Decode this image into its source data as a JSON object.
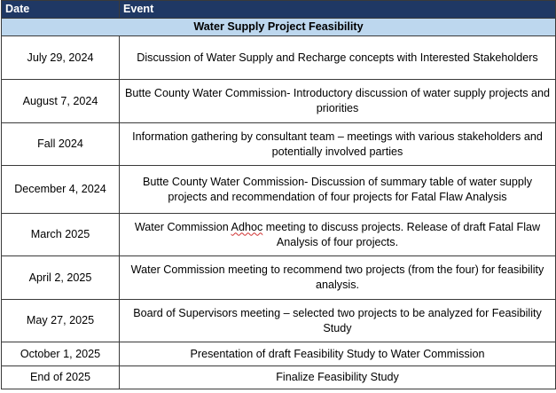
{
  "table": {
    "header": {
      "date": "Date",
      "event": "Event"
    },
    "section_title": "Water Supply Project Feasibility",
    "rows": [
      {
        "date": "July 29, 2024",
        "event": "Discussion of Water Supply and Recharge concepts with Interested Stakeholders"
      },
      {
        "date": "August 7, 2024",
        "event": "Butte County Water Commission- Introductory discussion of water supply projects and priorities"
      },
      {
        "date": "Fall 2024",
        "event": "Information gathering by consultant team – meetings with various stakeholders and potentially involved parties"
      },
      {
        "date": "December 4, 2024",
        "event": "Butte County Water Commission- Discussion of summary table of water supply projects and recommendation of four projects for Fatal Flaw Analysis"
      },
      {
        "date": "March 2025",
        "event_before": "Water Commission ",
        "event_flagged": "Adhoc",
        "event_after": " meeting to discuss projects.  Release of draft Fatal Flaw Analysis of four projects."
      },
      {
        "date": "April 2, 2025",
        "event": "Water Commission meeting to recommend two projects (from the four) for feasibility analysis."
      },
      {
        "date": "May 27, 2025",
        "event": "Board of Supervisors meeting – selected two projects to be analyzed for Feasibility Study"
      },
      {
        "date": "October 1, 2025",
        "event": "Presentation of draft Feasibility Study to Water Commission"
      },
      {
        "date": "End of 2025",
        "event": "Finalize Feasibility Study"
      }
    ]
  },
  "colors": {
    "header_bg": "#1f3864",
    "header_text": "#ffffff",
    "section_bg": "#bdd7ee",
    "border": "#3a3a3a",
    "spellcheck_underline": "#d03030"
  }
}
